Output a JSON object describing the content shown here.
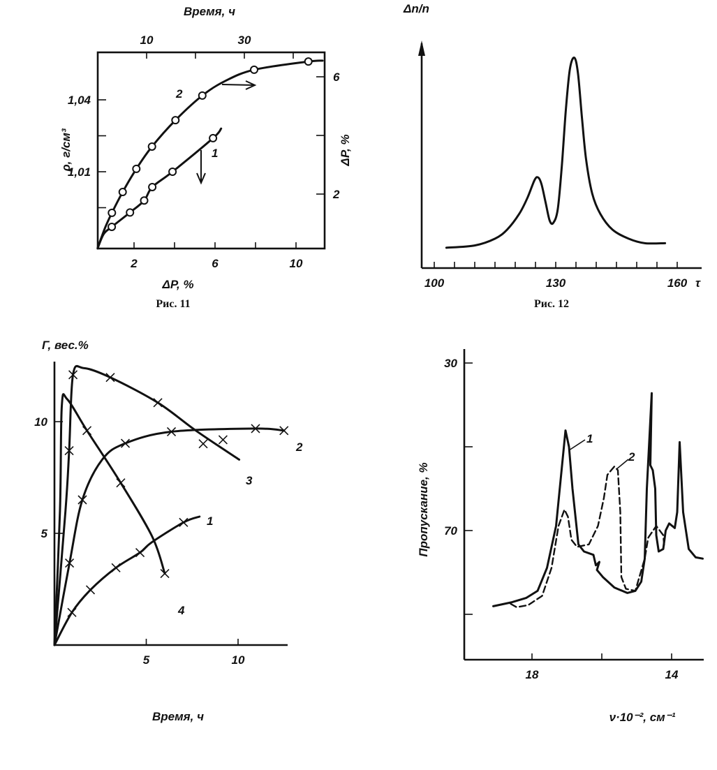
{
  "captions": {
    "fig11": "Рис. 11",
    "fig12": "Рис. 12"
  },
  "chart_data": [
    {
      "type": "line",
      "axes": {
        "bottom": {
          "label": "ΔP, %",
          "range": [
            0.2,
            11.3
          ],
          "ticks": [
            2,
            4,
            6,
            8,
            10
          ],
          "tick_labels": [
            {
              "value": 2,
              "text": "2"
            },
            {
              "value": 6,
              "text": "6"
            },
            {
              "value": 10,
              "text": "10"
            }
          ]
        },
        "top": {
          "label": "Время, ч",
          "range": [
            0,
            46
          ],
          "ticks": [
            10,
            20,
            30,
            40
          ],
          "tick_labels": [
            {
              "value": 10,
              "text": "10"
            },
            {
              "value": 30,
              "text": "30"
            }
          ]
        },
        "left": {
          "label": "ρ, г/см³",
          "range": [
            0.978,
            1.057
          ],
          "ticks": [
            0.995,
            1.01,
            1.025,
            1.04
          ],
          "tick_labels": [
            {
              "value": 1.04,
              "text": "1,04"
            },
            {
              "value": 1.01,
              "text": "1,01"
            }
          ]
        },
        "right": {
          "label": "ΔP, %",
          "range": [
            0.17,
            6.8
          ],
          "ticks": [
            2,
            4,
            6
          ],
          "tick_labels": [
            {
              "value": 6,
              "text": "6"
            },
            {
              "value": 2,
              "text": "2"
            }
          ]
        }
      },
      "series": [
        {
          "name": "1",
          "axes": "bottom-left",
          "marker": "circle",
          "line": [
            [
              0.2,
              0.978
            ],
            [
              0.5,
              0.984
            ],
            [
              0.9,
              0.987
            ],
            [
              1.8,
              0.993
            ],
            [
              2.5,
              0.998
            ],
            [
              2.9,
              1.0036
            ],
            [
              3.9,
              1.01
            ],
            [
              5.9,
              1.024
            ],
            [
              6.3,
              1.028
            ]
          ],
          "markers": [
            [
              0.9,
              0.987
            ],
            [
              1.8,
              0.993
            ],
            [
              2.5,
              0.998
            ],
            [
              2.9,
              1.0036
            ],
            [
              3.9,
              1.01
            ],
            [
              5.9,
              1.024
            ]
          ]
        },
        {
          "name": "2",
          "axes": "top-right",
          "marker": "circle",
          "line": [
            [
              0,
              0.17
            ],
            [
              1.5,
              0.85
            ],
            [
              2.9,
              1.36
            ],
            [
              5.1,
              2.07
            ],
            [
              7.9,
              2.86
            ],
            [
              11.1,
              3.62
            ],
            [
              15.9,
              4.52
            ],
            [
              21.4,
              5.36
            ],
            [
              26,
              5.85
            ],
            [
              32,
              6.24
            ],
            [
              43.1,
              6.52
            ],
            [
              46,
              6.55
            ]
          ],
          "markers": [
            [
              2.9,
              1.36
            ],
            [
              5.1,
              2.07
            ],
            [
              7.9,
              2.86
            ],
            [
              11.1,
              3.62
            ],
            [
              15.9,
              4.52
            ],
            [
              21.4,
              5.36
            ],
            [
              32,
              6.24
            ],
            [
              43.1,
              6.52
            ]
          ]
        }
      ]
    },
    {
      "type": "line",
      "axes": {
        "bottom": {
          "label": "τ",
          "range": [
            97,
            164
          ],
          "ticks": [
            100,
            105,
            110,
            115,
            120,
            125,
            130,
            135,
            140,
            145,
            150,
            155,
            160
          ],
          "tick_labels": [
            {
              "value": 100,
              "text": "100"
            },
            {
              "value": 130,
              "text": "130"
            },
            {
              "value": 160,
              "text": "160"
            }
          ]
        },
        "left": {
          "label": "Δn/n",
          "range": [
            0,
            1
          ],
          "ticks": [],
          "tick_labels": []
        }
      },
      "series": [
        {
          "name": "Δn/n",
          "axes": "bottom-left",
          "marker": "none",
          "line": [
            [
              103,
              0.09
            ],
            [
              110,
              0.1
            ],
            [
              115,
              0.13
            ],
            [
              118,
              0.17
            ],
            [
              121,
              0.24
            ],
            [
              123,
              0.31
            ],
            [
              124.8,
              0.39
            ],
            [
              125.7,
              0.4
            ],
            [
              126.5,
              0.37
            ],
            [
              127.5,
              0.29
            ],
            [
              128.5,
              0.21
            ],
            [
              129.4,
              0.2
            ],
            [
              130.5,
              0.26
            ],
            [
              131.5,
              0.45
            ],
            [
              132.5,
              0.7
            ],
            [
              133.5,
              0.88
            ],
            [
              134.6,
              0.93
            ],
            [
              135.5,
              0.86
            ],
            [
              136.5,
              0.66
            ],
            [
              137.5,
              0.48
            ],
            [
              139,
              0.33
            ],
            [
              141,
              0.24
            ],
            [
              144,
              0.17
            ],
            [
              148,
              0.13
            ],
            [
              152,
              0.11
            ],
            [
              157,
              0.11
            ]
          ],
          "markers": []
        }
      ]
    },
    {
      "type": "line",
      "axes": {
        "bottom": {
          "label": "Время, ч",
          "range": [
            0,
            12.7
          ],
          "ticks": [
            5,
            10
          ],
          "tick_labels": [
            {
              "value": 5,
              "text": "5"
            },
            {
              "value": 10,
              "text": "10"
            }
          ]
        },
        "left": {
          "label": "Γ, вес.%",
          "range": [
            0,
            12.7
          ],
          "ticks": [
            5,
            10
          ],
          "tick_labels": [
            {
              "value": 10,
              "text": "10"
            },
            {
              "value": 5,
              "text": "5"
            }
          ]
        }
      },
      "series": [
        {
          "name": "1",
          "axes": "bottom-left",
          "marker": "cross",
          "line": [
            [
              0,
              0
            ],
            [
              0.95,
              1.46
            ],
            [
              1.96,
              2.47
            ],
            [
              3.35,
              3.46
            ],
            [
              4.66,
              4.14
            ],
            [
              5.3,
              4.6
            ],
            [
              7.03,
              5.49
            ],
            [
              7.9,
              5.75
            ]
          ],
          "markers": [
            [
              0.95,
              1.46
            ],
            [
              1.96,
              2.47
            ],
            [
              3.35,
              3.46
            ],
            [
              4.66,
              4.14
            ],
            [
              7.03,
              5.49
            ]
          ]
        },
        {
          "name": "2",
          "axes": "bottom-left",
          "marker": "cross",
          "line": [
            [
              0,
              0
            ],
            [
              0.82,
              3.67
            ],
            [
              1.52,
              6.5
            ],
            [
              2.6,
              8.3
            ],
            [
              3.86,
              9.03
            ],
            [
              6.37,
              9.55
            ],
            [
              10.95,
              9.69
            ],
            [
              12.5,
              9.6
            ]
          ],
          "markers": [
            [
              0.82,
              3.67
            ],
            [
              1.52,
              6.5
            ],
            [
              3.86,
              9.03
            ],
            [
              6.37,
              9.55
            ],
            [
              10.95,
              9.69
            ],
            [
              12.5,
              9.6
            ]
          ]
        },
        {
          "name": "3",
          "axes": "bottom-left",
          "marker": "cross",
          "line": [
            [
              0,
              0
            ],
            [
              0.6,
              6
            ],
            [
              0.8,
              8.7
            ],
            [
              1.01,
              12.1
            ],
            [
              1.58,
              12.4
            ],
            [
              3.04,
              11.98
            ],
            [
              5.63,
              10.85
            ],
            [
              7.7,
              9.6
            ],
            [
              10.06,
              8.3
            ]
          ],
          "markers": [
            [
              0.8,
              8.7
            ],
            [
              1.01,
              12.1
            ],
            [
              3.04,
              11.98
            ],
            [
              5.63,
              10.85
            ],
            [
              8.1,
              9.01
            ],
            [
              9.18,
              9.19
            ]
          ]
        },
        {
          "name": "4",
          "axes": "bottom-left",
          "marker": "cross",
          "line": [
            [
              0,
              0
            ],
            [
              0.3,
              6
            ],
            [
              0.4,
              10.7
            ],
            [
              0.7,
              11.0
            ],
            [
              1.77,
              9.6
            ],
            [
              3.61,
              7.26
            ],
            [
              5.32,
              4.86
            ],
            [
              6.01,
              3.2
            ]
          ],
          "markers": [
            [
              1.77,
              9.6
            ],
            [
              3.61,
              7.26
            ],
            [
              6.01,
              3.2
            ]
          ]
        }
      ]
    },
    {
      "type": "line",
      "axes": {
        "bottom": {
          "label": "ν·10⁻², см⁻¹",
          "range": [
            20,
            13.02
          ],
          "ticks": [
            18,
            16,
            14
          ],
          "tick_labels": [
            {
              "value": 18,
              "text": "18"
            },
            {
              "value": 14,
              "text": "14"
            }
          ]
        },
        "left": {
          "label": "Пропускание, %",
          "range": [
            26.7,
            100.8
          ],
          "ticks": [
            30,
            50,
            70,
            90
          ],
          "tick_labels": [
            {
              "value": 30,
              "text": "30"
            },
            {
              "value": 70,
              "text": "70"
            }
          ]
        }
      },
      "series": [
        {
          "name": "1",
          "axes": "bottom-left",
          "marker": "none",
          "style": "solid",
          "line": [
            [
              19.11,
              88.06
            ],
            [
              18.57,
              87.1
            ],
            [
              18.17,
              86.1
            ],
            [
              17.84,
              84.4
            ],
            [
              17.57,
              78.9
            ],
            [
              17.31,
              68.9
            ],
            [
              17.04,
              46.1
            ],
            [
              16.94,
              50.0
            ],
            [
              16.84,
              60.0
            ],
            [
              16.67,
              73.3
            ],
            [
              16.51,
              75.0
            ],
            [
              16.24,
              75.8
            ],
            [
              16.17,
              78.3
            ],
            [
              16.07,
              77.5
            ],
            [
              16.14,
              79.4
            ],
            [
              15.97,
              81.1
            ],
            [
              15.64,
              83.6
            ],
            [
              15.27,
              84.9
            ],
            [
              15.04,
              84.4
            ],
            [
              14.87,
              82.2
            ],
            [
              14.77,
              76.7
            ],
            [
              14.71,
              60.0
            ],
            [
              14.57,
              37.2
            ],
            [
              14.61,
              54.4
            ],
            [
              14.54,
              55.6
            ],
            [
              14.47,
              60.0
            ],
            [
              14.44,
              71.1
            ],
            [
              14.37,
              75.0
            ],
            [
              14.24,
              74.4
            ],
            [
              14.17,
              70.0
            ],
            [
              14.07,
              68.3
            ],
            [
              13.91,
              69.4
            ],
            [
              13.84,
              65.6
            ],
            [
              13.77,
              48.9
            ],
            [
              13.67,
              65.6
            ],
            [
              13.51,
              74.4
            ],
            [
              13.31,
              76.4
            ],
            [
              13.11,
              76.7
            ]
          ],
          "markers": []
        },
        {
          "name": "2",
          "axes": "bottom-left",
          "marker": "none",
          "style": "dashed",
          "line": [
            [
              18.61,
              87.5
            ],
            [
              18.44,
              88.3
            ],
            [
              18.11,
              87.8
            ],
            [
              17.71,
              85.6
            ],
            [
              17.44,
              78.9
            ],
            [
              17.24,
              68.9
            ],
            [
              17.07,
              65.0
            ],
            [
              16.97,
              66.7
            ],
            [
              16.87,
              72.2
            ],
            [
              16.71,
              73.9
            ],
            [
              16.37,
              73.3
            ],
            [
              16.11,
              68.9
            ],
            [
              15.94,
              62.2
            ],
            [
              15.84,
              56.7
            ],
            [
              15.64,
              54.7
            ],
            [
              15.54,
              55.6
            ],
            [
              15.47,
              65.6
            ],
            [
              15.44,
              81.1
            ],
            [
              15.31,
              83.9
            ],
            [
              15.04,
              84.4
            ],
            [
              14.77,
              76.7
            ],
            [
              14.67,
              71.7
            ],
            [
              14.44,
              68.9
            ],
            [
              14.24,
              71.1
            ],
            [
              14.21,
              73.9
            ]
          ],
          "markers": []
        }
      ]
    }
  ]
}
